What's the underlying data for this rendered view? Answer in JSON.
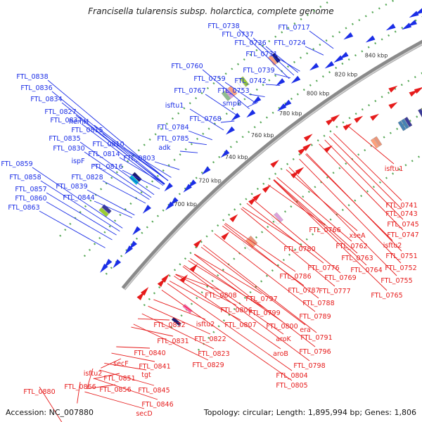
{
  "title": "Francisella tularensis subsp. holarctica, complete genome",
  "footer": {
    "accession": "Accession: NC_007880",
    "details": "Topology: circular; Length: 1,895,994 bp; Genes: 1,806"
  },
  "colors": {
    "forward": "#1b2ee6",
    "reverse": "#e61b1b",
    "backbone": "#8a8a8a",
    "rna": "#2e8b2e",
    "tick_text": "#333333"
  },
  "ticks": [
    "700 kbp",
    "720 kbp",
    "740 kbp",
    "760 kbp",
    "780 kbp",
    "800 kbp",
    "820 kbp",
    "840 kbp"
  ],
  "labels_forward": [
    "FTL_0738",
    "FTL_0737",
    "FTL_0736",
    "FTL_0731",
    "FTL_0717",
    "FTL_0724",
    "FTL_0739",
    "FTL_0742",
    "FTL_0760",
    "FTL_0759",
    "FTL_0753",
    "smpB",
    "FTL_0767",
    "FTL_0838",
    "FTL_0836",
    "FTL_0834",
    "FTL_0827",
    "FTL_0837",
    "hemH",
    "FTL_0815",
    "FTL_0835",
    "FTL_0830",
    "FTL_0810",
    "FTL_0814",
    "FTL_0816",
    "FTL_0803",
    "ispF",
    "FTL_0828",
    "FTL_0839",
    "FTL_0844",
    "isftu1",
    "FTL_0768",
    "FTL_0784",
    "FTL_0785",
    "adk",
    "FTL_0859",
    "FTL_0858",
    "FTL_0857",
    "FTL_0860",
    "FTL_0863"
  ],
  "labels_reverse": [
    "isftu1",
    "FTL_0741",
    "FTL_0743",
    "FTL_0745",
    "FTL_0747",
    "isftu2",
    "FTL_0751",
    "FTL_0752",
    "FTL_0755",
    "FTL_0765",
    "xseA",
    "FTL_0766",
    "FTL_0762",
    "FTL_0763",
    "FTL_0764",
    "FTL_0769",
    "FTL_0777",
    "FTL_0776",
    "FTL_0780",
    "FTL_0786",
    "FTL_0787",
    "FTL_0788",
    "FTL_0789",
    "FTL_0791",
    "FTL_0796",
    "FTL_0798",
    "FTL_0797",
    "FTL_0799",
    "FTL_0800",
    "era",
    "aroK",
    "aroB",
    "FTL_0804",
    "FTL_0805",
    "FTL_0808",
    "FTL_0806",
    "FTL_0807",
    "isftu2",
    "FTL_0822",
    "FTL_0823",
    "FTL_0829",
    "FTL_0832",
    "FTL_0831",
    "FTL_0840",
    "FTL_0841",
    "tgt",
    "FTL_0845",
    "FTL_0846",
    "secD",
    "secF",
    "FTL_0851",
    "FTL_0856",
    "isftu2",
    "FTL_0866",
    "FTL_0880"
  ]
}
